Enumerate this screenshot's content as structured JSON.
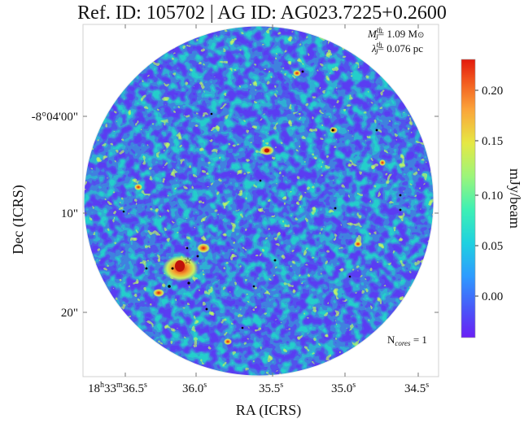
{
  "title": "Ref. ID: 105702 | AG ID: AG023.7225+0.2600",
  "axes": {
    "xlabel": "RA (ICRS)",
    "ylabel": "Dec (ICRS)",
    "x_ticks": [
      {
        "base": "18",
        "sup1": "h",
        "mid": "33",
        "sup2": "m",
        "sec": "36.5",
        "sup3": "s"
      },
      {
        "sec": "36.0",
        "sup3": "s"
      },
      {
        "sec": "35.5",
        "sup3": "s"
      },
      {
        "sec": "35.0",
        "sup3": "s"
      },
      {
        "sec": "34.5",
        "sup3": "s"
      }
    ],
    "y_ticks": [
      "-8°04'00\"",
      "10\"",
      "20\""
    ]
  },
  "annotations": {
    "mass_label": "M",
    "mass_sup": "th",
    "mass_sub": "J",
    "mass_value": "= 1.09 M",
    "mass_unit_symbol": "⊙",
    "jeans_label": "λ",
    "jeans_sup": "th",
    "jeans_sub": "J",
    "jeans_value": "= 0.076 pc",
    "ncores_label": "N",
    "ncores_sub": "cores",
    "ncores_value": " = 1"
  },
  "colorbar": {
    "label": "mJy/beam",
    "ticks": [
      "0.20",
      "0.15",
      "0.10",
      "0.05",
      "0.00"
    ],
    "colormap": "rainbow",
    "colors": [
      "#6a1ff5",
      "#4a55f8",
      "#2e9bff",
      "#1fd1e0",
      "#3ef0b4",
      "#9cf57a",
      "#e6e844",
      "#fba43a",
      "#f25a1e",
      "#e31a0c"
    ]
  }
}
